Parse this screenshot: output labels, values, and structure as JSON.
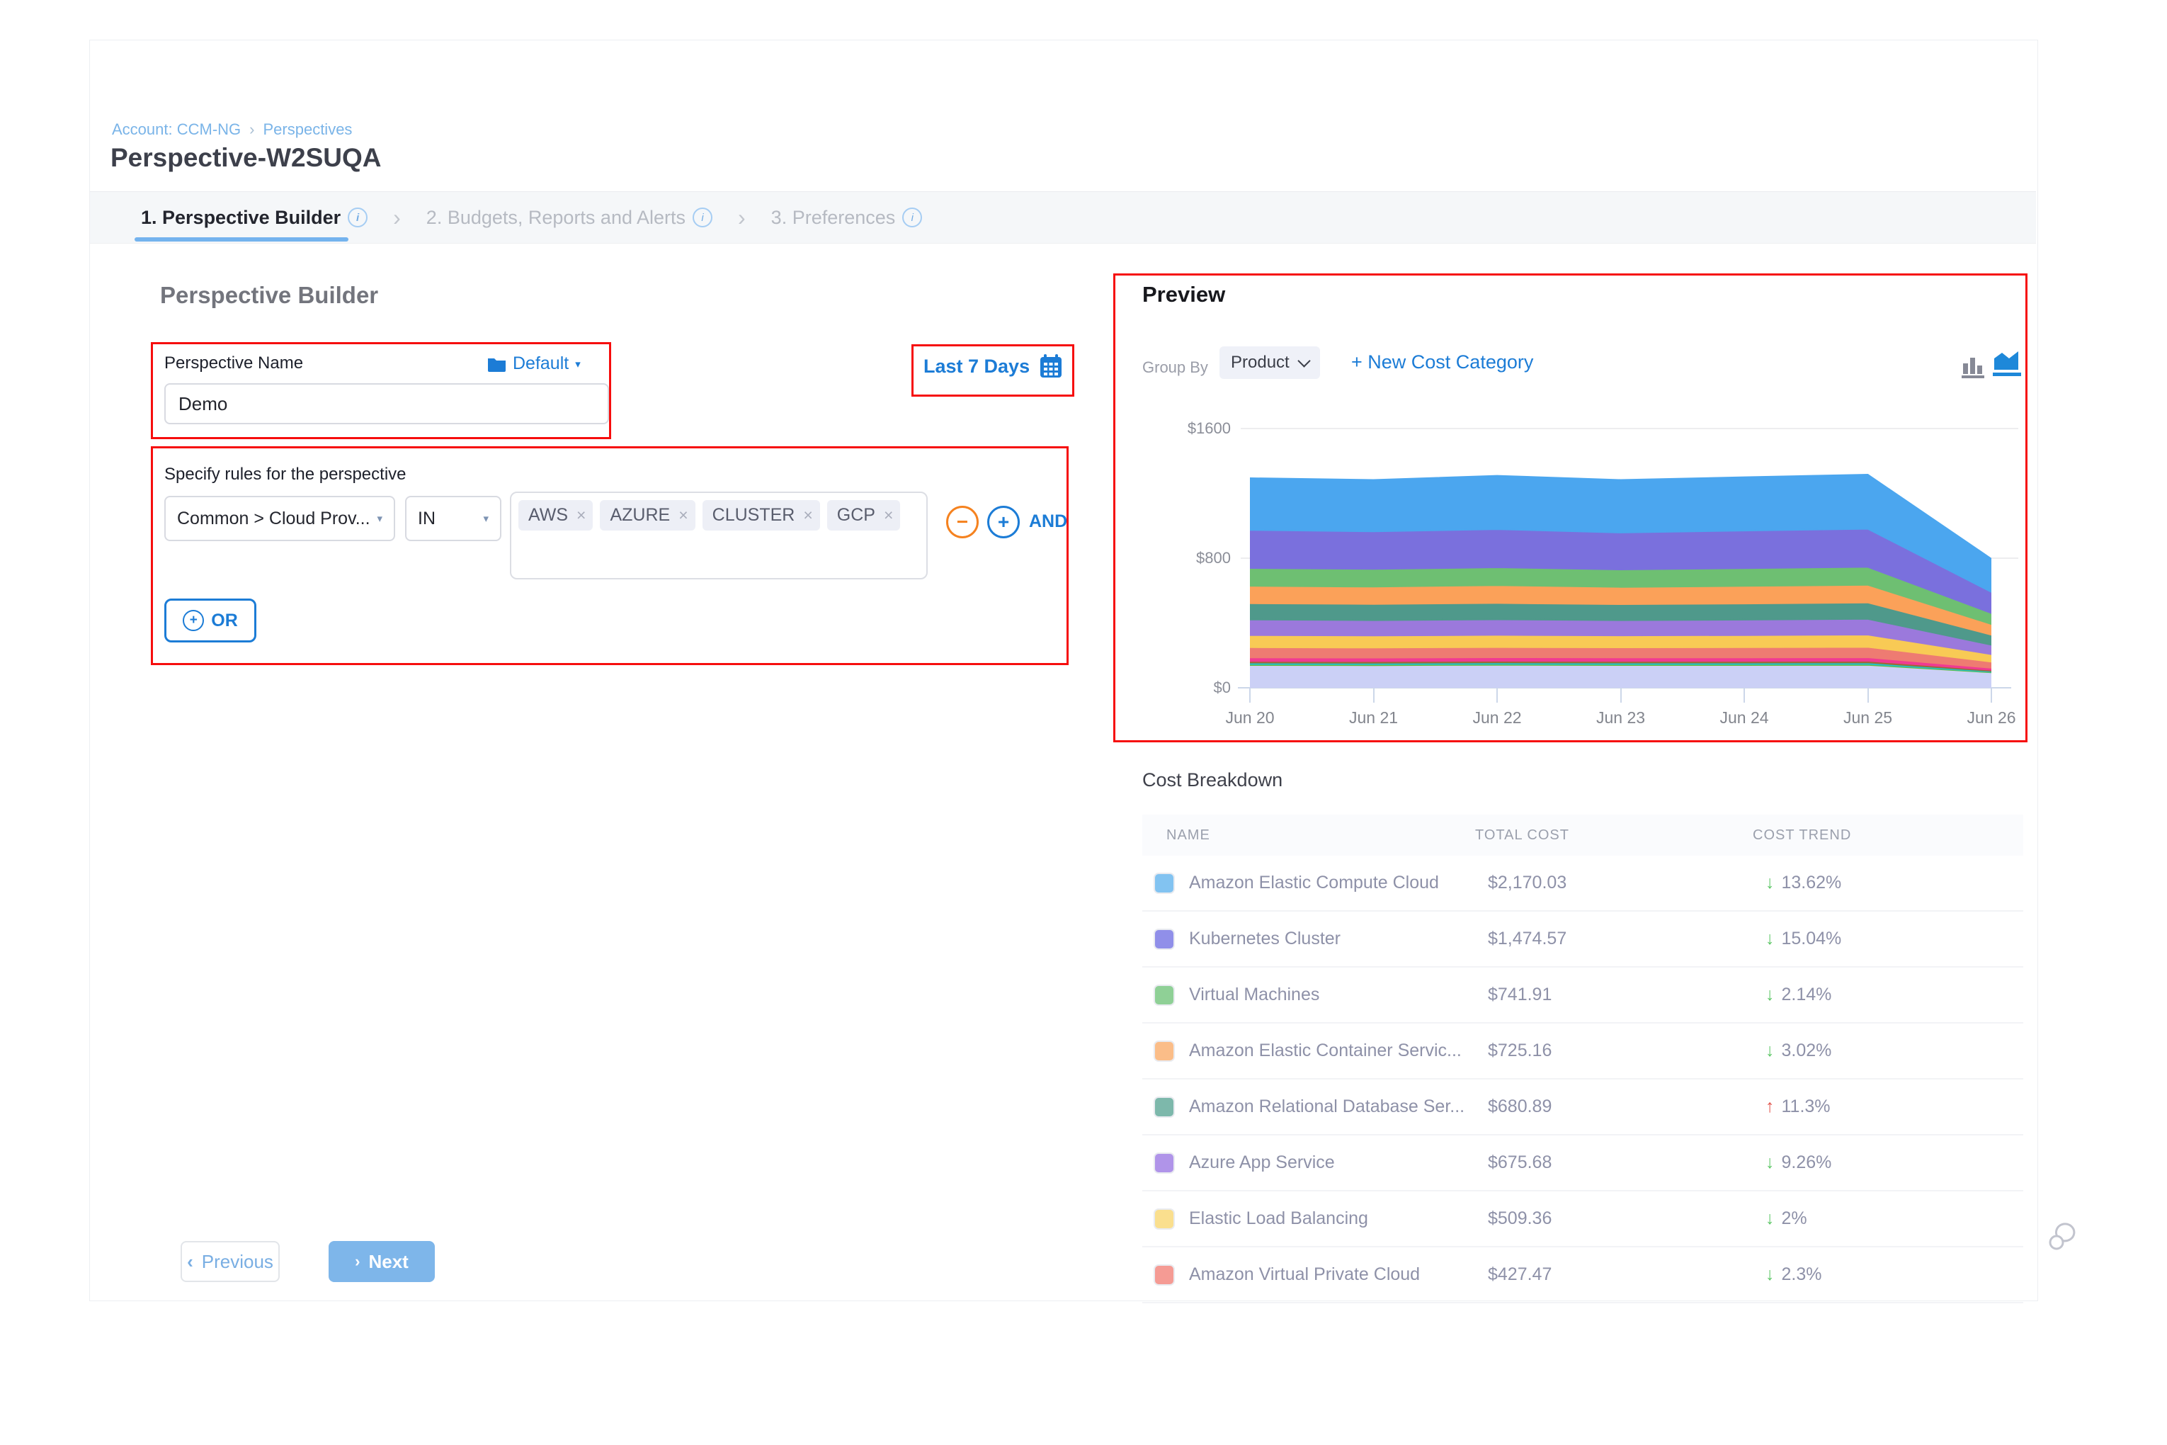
{
  "breadcrumb": {
    "account": "Account: CCM-NG",
    "chevron": "›",
    "section": "Perspectives"
  },
  "page_title": "Perspective-W2SUQA",
  "tabs": {
    "chevron": "›",
    "items": [
      {
        "label": "1. Perspective Builder",
        "info": "i",
        "active": true
      },
      {
        "label": "2. Budgets, Reports and Alerts",
        "info": "i",
        "active": false
      },
      {
        "label": "3. Preferences",
        "info": "i",
        "active": false
      }
    ]
  },
  "builder": {
    "heading": "Perspective Builder",
    "name_label": "Perspective Name",
    "folder_label": "Default",
    "caret": "▾",
    "name_value": "Demo",
    "date_range_label": "Last 7 Days",
    "rules_label": "Specify rules for the perspective",
    "rule_field": "Common > Cloud Prov...",
    "rule_operator": "IN",
    "rule_values": [
      "AWS",
      "AZURE",
      "CLUSTER",
      "GCP"
    ],
    "remove_glyph": "×",
    "minus_glyph": "−",
    "plus_glyph": "+",
    "and_label": "AND",
    "or_label": "OR",
    "previous_chevron": "‹",
    "previous_label": "Previous",
    "next_chevron": "›",
    "next_label": "Next"
  },
  "preview": {
    "heading": "Preview",
    "group_by_label": "Group By",
    "group_by_value": "Product",
    "new_cost_category_label": "+ New Cost Category"
  },
  "chart_data": {
    "type": "area",
    "stacked": true,
    "title": "",
    "xlabel": "",
    "ylabel": "",
    "x": [
      "Jun 20",
      "Jun 21",
      "Jun 22",
      "Jun 23",
      "Jun 24",
      "Jun 25",
      "Jun 26"
    ],
    "y_ticks": [
      {
        "label": "$1600",
        "value": 1600
      },
      {
        "label": "$800",
        "value": 800
      },
      {
        "label": "$0",
        "value": 0
      }
    ],
    "ylim": [
      0,
      1600
    ],
    "grid": true,
    "legend": false,
    "series": [
      {
        "name": "unlabeled-series-1",
        "color": "#cbd0f6",
        "values": [
          140,
          139,
          141,
          140,
          140,
          141,
          95
        ]
      },
      {
        "name": "unlabeled-series-2",
        "color": "#66bb3a",
        "values": [
          6,
          6,
          6,
          6,
          6,
          6,
          4
        ]
      },
      {
        "name": "unlabeled-series-3",
        "color": "#1fc3cc",
        "values": [
          9,
          9,
          9,
          9,
          9,
          9,
          5
        ]
      },
      {
        "name": "unlabeled-series-4",
        "color": "#9c6a33",
        "values": [
          10,
          10,
          10,
          10,
          10,
          10,
          6
        ]
      },
      {
        "name": "unlabeled-series-5",
        "color": "#f03a92",
        "values": [
          22,
          22,
          22,
          22,
          22,
          22,
          13
        ]
      },
      {
        "name": "Amazon Virtual Private Cloud",
        "color": "#ee7b72",
        "values": [
          63,
          62,
          63,
          62,
          63,
          64,
          38
        ]
      },
      {
        "name": "Elastic Load Balancing",
        "color": "#f8ca55",
        "values": [
          75,
          74,
          75,
          74,
          75,
          76,
          46
        ]
      },
      {
        "name": "Azure App Service",
        "color": "#9b79dc",
        "values": [
          96,
          95,
          96,
          94,
          95,
          97,
          58
        ]
      },
      {
        "name": "Amazon Relational Database Ser...",
        "color": "#4f998b",
        "values": [
          100,
          100,
          101,
          99,
          100,
          101,
          62
        ]
      },
      {
        "name": "Amazon Elastic Container Servic...",
        "color": "#fba159",
        "values": [
          108,
          107,
          110,
          106,
          108,
          109,
          66
        ]
      },
      {
        "name": "Virtual Machines",
        "color": "#6ebf72",
        "values": [
          110,
          109,
          110,
          108,
          110,
          111,
          68
        ]
      },
      {
        "name": "Kubernetes Cluster",
        "color": "#7a70dd",
        "values": [
          235,
          232,
          236,
          228,
          232,
          235,
          130
        ]
      },
      {
        "name": "Amazon Elastic Compute Cloud",
        "color": "#4ba6ef",
        "values": [
          320,
          318,
          330,
          325,
          330,
          335,
          205
        ]
      }
    ]
  },
  "cost_breakdown": {
    "title": "Cost Breakdown",
    "columns": [
      "NAME",
      "TOTAL COST",
      "COST TREND"
    ],
    "down_arrow": "↓",
    "up_arrow": "↑",
    "rows": [
      {
        "name": "Amazon Elastic Compute Cloud",
        "color": "#82c3f1",
        "total_cost": "$2,170.03",
        "trend": "13.62%",
        "direction": "down"
      },
      {
        "name": "Kubernetes Cluster",
        "color": "#908fe9",
        "total_cost": "$1,474.57",
        "trend": "15.04%",
        "direction": "down"
      },
      {
        "name": "Virtual Machines",
        "color": "#8fd096",
        "total_cost": "$741.91",
        "trend": "2.14%",
        "direction": "down"
      },
      {
        "name": "Amazon Elastic Container Servic...",
        "color": "#fbbd88",
        "total_cost": "$725.16",
        "trend": "3.02%",
        "direction": "down"
      },
      {
        "name": "Amazon Relational Database Ser...",
        "color": "#7db8ab",
        "total_cost": "$680.89",
        "trend": "11.3%",
        "direction": "up"
      },
      {
        "name": "Azure App Service",
        "color": "#b094e9",
        "total_cost": "$675.68",
        "trend": "9.26%",
        "direction": "down"
      },
      {
        "name": "Elastic Load Balancing",
        "color": "#fadf8e",
        "total_cost": "$509.36",
        "trend": "2%",
        "direction": "down"
      },
      {
        "name": "Amazon Virtual Private Cloud",
        "color": "#f59b94",
        "total_cost": "$427.47",
        "trend": "2.3%",
        "direction": "down"
      }
    ]
  }
}
